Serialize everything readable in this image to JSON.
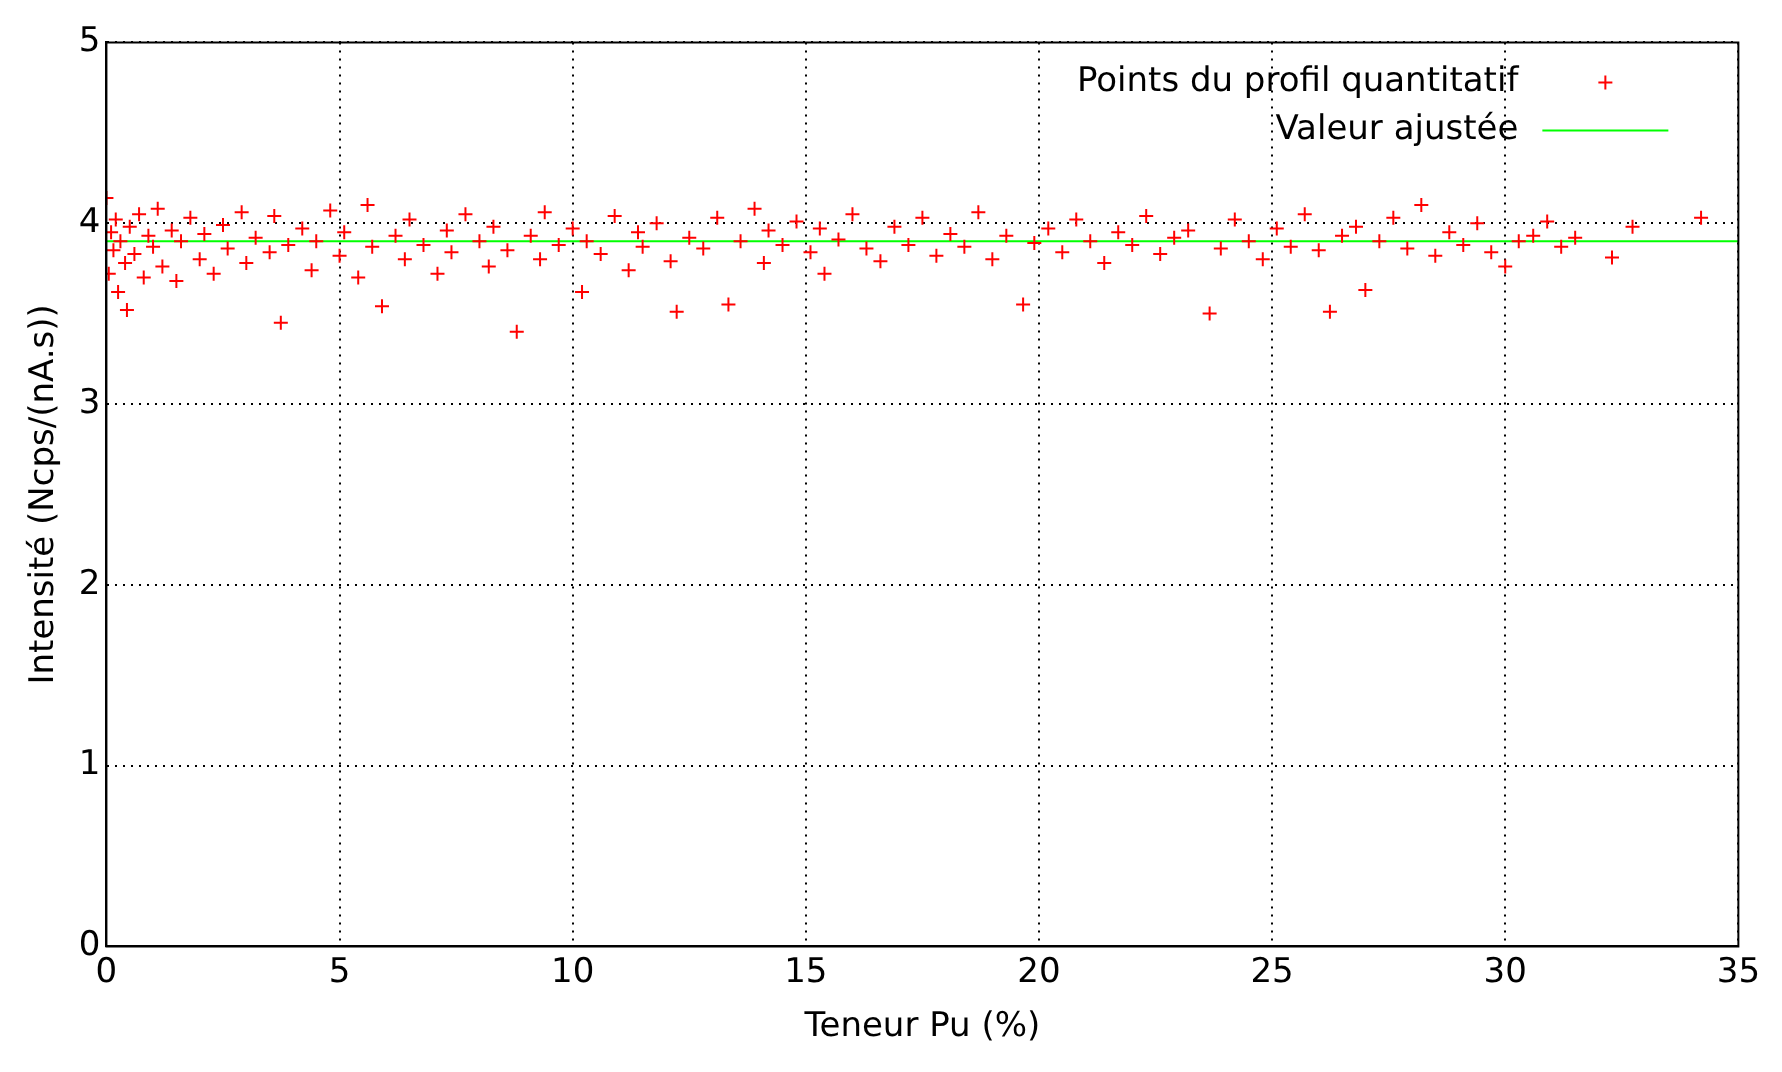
{
  "chart_data": {
    "type": "scatter",
    "xlabel": "Teneur Pu (%)",
    "ylabel": "Intensité (Ncps/(nA.s))",
    "xlim": [
      0,
      35
    ],
    "xticks": [
      0,
      5,
      10,
      15,
      20,
      25,
      30,
      35
    ],
    "ylim": [
      0,
      5
    ],
    "yticks": [
      0,
      1,
      2,
      3,
      4,
      5
    ],
    "grid": true,
    "legend": "top right",
    "series": [
      {
        "name": "Points du profil quantitatif",
        "color": "#ff0000",
        "type": "scatter",
        "marker": "cross",
        "x": [
          0,
          0.05,
          0.1,
          0.15,
          0.2,
          0.25,
          0.3,
          0.4,
          0.44,
          0.5,
          0.6,
          0.7,
          0.8,
          0.9,
          1.0,
          1.1,
          1.2,
          1.4,
          1.5,
          1.6,
          1.8,
          2.0,
          2.1,
          2.3,
          2.5,
          2.6,
          2.9,
          3.0,
          3.2,
          3.5,
          3.6,
          3.74,
          3.9,
          4.2,
          4.4,
          4.5,
          4.8,
          5.0,
          5.1,
          5.4,
          5.6,
          5.7,
          5.91,
          6.2,
          6.4,
          6.5,
          6.8,
          7.1,
          7.3,
          7.4,
          7.7,
          8.0,
          8.2,
          8.3,
          8.6,
          8.8,
          9.1,
          9.3,
          9.4,
          9.7,
          10.0,
          10.2,
          10.3,
          10.6,
          10.9,
          11.2,
          11.4,
          11.5,
          11.8,
          12.1,
          12.23,
          12.5,
          12.8,
          13.1,
          13.34,
          13.6,
          13.9,
          14.1,
          14.2,
          14.5,
          14.8,
          15.1,
          15.3,
          15.4,
          15.7,
          16.0,
          16.3,
          16.6,
          16.9,
          17.2,
          17.5,
          17.8,
          18.1,
          18.4,
          18.7,
          19.0,
          19.3,
          19.66,
          19.9,
          20.2,
          20.5,
          20.8,
          21.1,
          21.4,
          21.7,
          22.0,
          22.3,
          22.6,
          22.9,
          23.2,
          23.66,
          23.9,
          24.2,
          24.5,
          24.8,
          25.1,
          25.4,
          25.7,
          26.0,
          26.24,
          26.5,
          26.8,
          27.0,
          27.3,
          27.6,
          27.9,
          28.2,
          28.5,
          28.8,
          29.1,
          29.4,
          29.7,
          30.0,
          30.29,
          30.6,
          30.9,
          31.2,
          31.5,
          32.29,
          32.73,
          34.2
        ],
        "values": [
          4.14,
          3.72,
          3.95,
          3.85,
          4.02,
          3.62,
          3.9,
          3.78,
          3.52,
          3.98,
          3.83,
          4.05,
          3.7,
          3.93,
          3.87,
          4.08,
          3.76,
          3.96,
          3.68,
          3.9,
          4.03,
          3.8,
          3.94,
          3.72,
          3.99,
          3.86,
          4.06,
          3.78,
          3.92,
          3.84,
          4.04,
          3.45,
          3.88,
          3.97,
          3.74,
          3.9,
          4.07,
          3.82,
          3.95,
          3.7,
          4.1,
          3.87,
          3.54,
          3.93,
          3.8,
          4.02,
          3.88,
          3.72,
          3.96,
          3.84,
          4.05,
          3.9,
          3.76,
          3.98,
          3.85,
          3.4,
          3.93,
          3.8,
          4.06,
          3.88,
          3.97,
          3.62,
          3.9,
          3.83,
          4.04,
          3.74,
          3.95,
          3.87,
          4.0,
          3.79,
          3.51,
          3.92,
          3.86,
          4.03,
          3.55,
          3.9,
          4.08,
          3.78,
          3.96,
          3.88,
          4.01,
          3.84,
          3.97,
          3.72,
          3.91,
          4.05,
          3.86,
          3.79,
          3.98,
          3.88,
          4.03,
          3.82,
          3.94,
          3.87,
          4.06,
          3.8,
          3.93,
          3.55,
          3.89,
          3.97,
          3.84,
          4.02,
          3.9,
          3.78,
          3.95,
          3.88,
          4.04,
          3.83,
          3.92,
          3.96,
          3.5,
          3.86,
          4.02,
          3.9,
          3.8,
          3.97,
          3.87,
          4.05,
          3.85,
          3.51,
          3.93,
          3.98,
          3.63,
          3.9,
          4.03,
          3.86,
          4.1,
          3.82,
          3.95,
          3.88,
          4.0,
          3.84,
          3.76,
          3.9,
          3.93,
          4.01,
          3.87,
          3.92,
          3.81,
          3.98,
          4.03
        ]
      },
      {
        "name": "Valeur ajustée",
        "color": "#00ff00",
        "type": "line",
        "line_style": "solid",
        "x": [
          0,
          35
        ],
        "values": [
          3.9,
          3.9
        ]
      }
    ]
  }
}
